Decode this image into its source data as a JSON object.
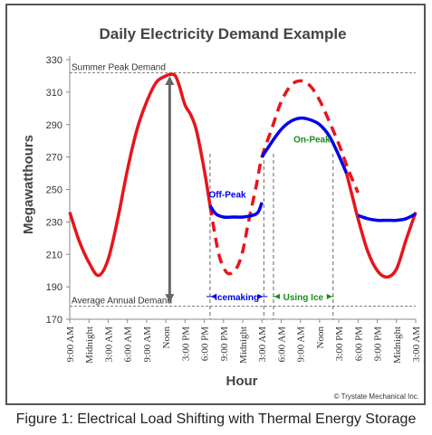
{
  "caption": "Figure 1: Electrical Load Shifting with Thermal Energy Storage",
  "chart_data": {
    "type": "line",
    "title": "Daily Electricity Demand Example",
    "xlabel": "Hour",
    "ylabel": "Megawatthours",
    "ylim": [
      170,
      330
    ],
    "yticks": [
      170,
      190,
      210,
      230,
      250,
      270,
      290,
      310,
      330
    ],
    "categories": [
      "9:00 AM",
      "Midnight",
      "3:00 AM",
      "6:00 AM",
      "9:00 AM",
      "Noon",
      "3:00 PM",
      "6:00 PM",
      "9:00 PM",
      "Midnight",
      "3:00 AM",
      "6:00 AM",
      "9:00 AM",
      "Noon",
      "3:00 PM",
      "6:00 PM",
      "9:00 PM",
      "Midnight",
      "3:00 AM"
    ],
    "grid": false,
    "reference_lines": [
      {
        "label": "Summer Peak Demand",
        "value": 322
      },
      {
        "label": "Average Annual Demand",
        "value": 178
      }
    ],
    "series": [
      {
        "style": "red-solid",
        "color": "#e8141c",
        "x": [
          0,
          0.5,
          1,
          1.5,
          2,
          2.5,
          3,
          3.5,
          4,
          4.5,
          5,
          5.3,
          5.5,
          5.7,
          6,
          6.3,
          6.6,
          7,
          7.3
        ],
        "values": [
          236,
          218,
          205,
          197,
          207,
          232,
          262,
          287,
          304,
          316,
          320,
          321,
          320,
          314,
          302,
          296,
          286,
          262,
          240
        ]
      },
      {
        "style": "red-dashed",
        "color": "#e8141c",
        "x": [
          7.3,
          7.7,
          8,
          8.3,
          8.7,
          9,
          9.3,
          9.7,
          10,
          10.5,
          11,
          11.5,
          12,
          12.5,
          13,
          13.5,
          14,
          14.5,
          15
        ],
        "values": [
          240,
          213,
          202,
          198,
          202,
          212,
          230,
          252,
          270,
          287,
          304,
          314,
          317,
          314,
          305,
          292,
          278,
          262,
          248
        ]
      },
      {
        "style": "red-solid",
        "color": "#e8141c",
        "x": [
          14.4,
          14.7,
          15,
          15.5,
          16,
          16.5,
          17,
          17.5,
          18
        ],
        "values": [
          260,
          246,
          232,
          212,
          200,
          196,
          201,
          219,
          236
        ]
      },
      {
        "style": "blue-solid",
        "color": "#0000ee",
        "x": [
          7.3,
          7.6,
          8,
          8.5,
          9,
          9.5,
          9.8,
          10
        ],
        "values": [
          240,
          235,
          233,
          233,
          233,
          234,
          236,
          242
        ]
      },
      {
        "style": "blue-solid",
        "color": "#0000ee",
        "x": [
          10,
          10.5,
          11,
          11.5,
          12,
          12.5,
          13,
          13.5,
          14,
          14.4
        ],
        "values": [
          270,
          279,
          287,
          292,
          294,
          293,
          290,
          283,
          271,
          260
        ]
      },
      {
        "style": "blue-solid",
        "color": "#0000ee",
        "x": [
          15,
          15.5,
          16,
          16.5,
          17,
          17.5,
          18
        ],
        "values": [
          234,
          232,
          231,
          231,
          231,
          232,
          235
        ]
      }
    ],
    "annotations": [
      {
        "text": "Off-Peak",
        "color": "#0000ee",
        "x": 8.2,
        "y": 245
      },
      {
        "text": "On-Peak",
        "color": "#1a8c1a",
        "x": 12.6,
        "y": 279
      },
      {
        "text": "Icemaking",
        "color": "#0000ee",
        "x_start": 7.3,
        "x_end": 10.1,
        "y": 184
      },
      {
        "text": "Using Ice",
        "color": "#1a8c1a",
        "x_start": 10.6,
        "x_end": 13.7,
        "y": 184
      }
    ],
    "vertical_lines": [
      7.3,
      10.1,
      10.6,
      13.7
    ],
    "double_arrow": {
      "x": 5.2,
      "from": 180,
      "to": 320
    },
    "credit": "© Trystate Mechanical Inc."
  }
}
